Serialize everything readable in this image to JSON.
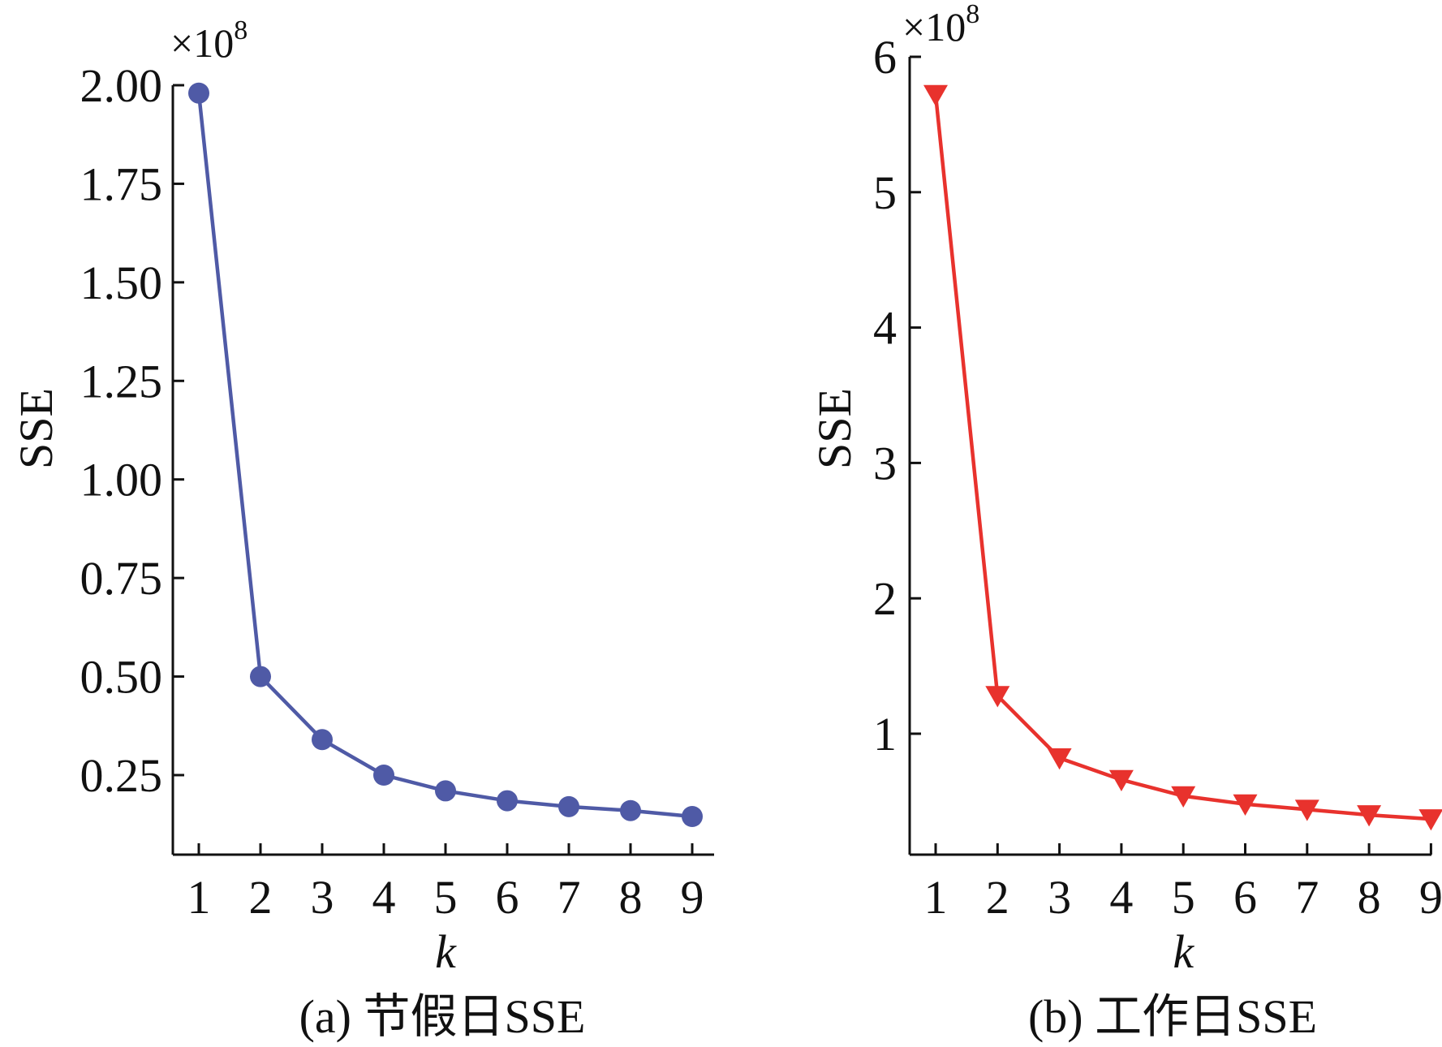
{
  "chart_data": [
    {
      "type": "line",
      "caption": "(a) 节假日SSE",
      "xlabel": "k",
      "ylabel": "SSE",
      "y_multiplier": "×10",
      "y_multiplier_exp": "8",
      "x": [
        1,
        2,
        3,
        4,
        5,
        6,
        7,
        8,
        9
      ],
      "x_ticks": [
        "1",
        "2",
        "3",
        "4",
        "5",
        "6",
        "7",
        "8",
        "9"
      ],
      "y_ticks": [
        "0.25",
        "0.50",
        "0.75",
        "1.00",
        "1.25",
        "1.50",
        "1.75",
        "2.00"
      ],
      "y_tick_values": [
        0.25,
        0.5,
        0.75,
        1.0,
        1.25,
        1.5,
        1.75,
        2.0
      ],
      "ylim": [
        0.07,
        2.0
      ],
      "series": [
        {
          "values": [
            1.98,
            0.5,
            0.34,
            0.25,
            0.21,
            0.185,
            0.17,
            0.16,
            0.145
          ],
          "color": "#4f5aa6",
          "marker": "circle"
        }
      ]
    },
    {
      "type": "line",
      "caption": "(b) 工作日SSE",
      "xlabel": "k",
      "ylabel": "SSE",
      "y_multiplier": "×10",
      "y_multiplier_exp": "8",
      "x": [
        1,
        2,
        3,
        4,
        5,
        6,
        7,
        8,
        9
      ],
      "x_ticks": [
        "1",
        "2",
        "3",
        "4",
        "5",
        "6",
        "7",
        "8",
        "9"
      ],
      "y_ticks": [
        "1",
        "2",
        "3",
        "4",
        "5",
        "6"
      ],
      "y_tick_values": [
        1,
        2,
        3,
        4,
        5,
        6
      ],
      "ylim": [
        0.0,
        6.0
      ],
      "series": [
        {
          "values": [
            5.72,
            1.28,
            0.82,
            0.66,
            0.54,
            0.48,
            0.44,
            0.4,
            0.37
          ],
          "color": "#e8322d",
          "marker": "triangle-down"
        }
      ]
    }
  ]
}
